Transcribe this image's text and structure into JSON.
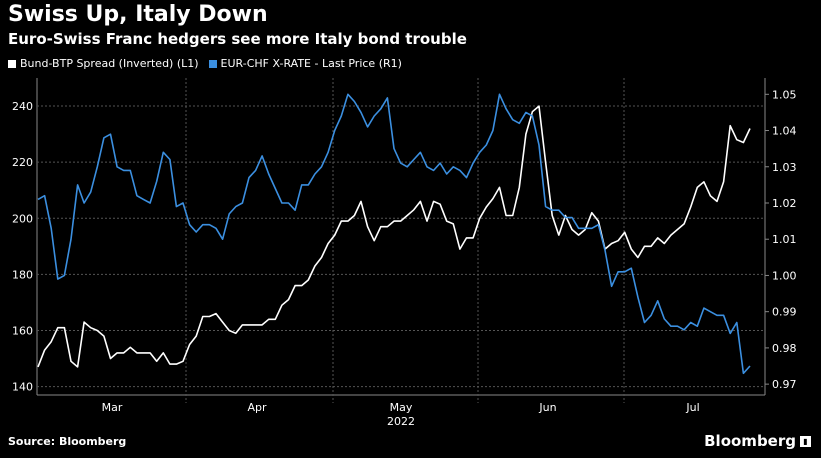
{
  "title": "Swiss Up, Italy Down",
  "subtitle": "Euro-Swiss Franc hedgers see more Italy bond trouble",
  "source": "Source: Bloomberg",
  "brand": "Bloomberg",
  "chart_data": {
    "type": "line",
    "x_labels": [
      "Mar",
      "Apr",
      "May",
      "Jun",
      "Jul"
    ],
    "x_year": "2022",
    "left_axis": {
      "ticks": [
        140,
        160,
        180,
        200,
        220,
        240
      ],
      "range": [
        137,
        250
      ],
      "inverted_note": "Bund-BTP Spread (Inverted)"
    },
    "right_axis": {
      "ticks": [
        "0.97",
        "0.98",
        "0.99",
        "1.00",
        "1.01",
        "1.02",
        "1.03",
        "1.04",
        "1.05"
      ],
      "range": [
        0.967,
        1.0545
      ]
    },
    "legend_position": "top-left",
    "grid": true,
    "series": [
      {
        "name": "Bund-BTP Spread (Inverted) (L1)",
        "axis": "left",
        "color": "#ffffff",
        "values": [
          147,
          153,
          156,
          161,
          161,
          149,
          147,
          163,
          161,
          160,
          158,
          150,
          152,
          152,
          154,
          152,
          152,
          152,
          149,
          152,
          148,
          148,
          149,
          155,
          158,
          165,
          165,
          166,
          163,
          160,
          159,
          162,
          162,
          162,
          162,
          164,
          164,
          169,
          171,
          176,
          176,
          178,
          183,
          186,
          191,
          194,
          199,
          199,
          201,
          206,
          197,
          192,
          197,
          197,
          199,
          199,
          201,
          203,
          206,
          199,
          206,
          205,
          199,
          198,
          189,
          193,
          193,
          200,
          204,
          207,
          211,
          201,
          201,
          211,
          230,
          238,
          240,
          220,
          201,
          194,
          201,
          196,
          194,
          196,
          202,
          199,
          189,
          191,
          192,
          195,
          189,
          186,
          190,
          190,
          193,
          191,
          194,
          196,
          198,
          204,
          211,
          213,
          208,
          206,
          213,
          233,
          228,
          227,
          232
        ]
      },
      {
        "name": "EUR-CHF X-RATE - Last Price (R1)",
        "axis": "right",
        "color": "#3b8fe0",
        "values": [
          1.021,
          1.022,
          1.013,
          0.999,
          1.0,
          1.01,
          1.025,
          1.02,
          1.023,
          1.03,
          1.038,
          1.039,
          1.03,
          1.029,
          1.029,
          1.022,
          1.021,
          1.02,
          1.026,
          1.034,
          1.032,
          1.019,
          1.02,
          1.014,
          1.012,
          1.014,
          1.014,
          1.013,
          1.01,
          1.017,
          1.019,
          1.02,
          1.027,
          1.029,
          1.033,
          1.028,
          1.024,
          1.02,
          1.02,
          1.018,
          1.025,
          1.025,
          1.028,
          1.03,
          1.034,
          1.04,
          1.044,
          1.05,
          1.048,
          1.045,
          1.041,
          1.044,
          1.046,
          1.049,
          1.035,
          1.031,
          1.03,
          1.032,
          1.034,
          1.03,
          1.029,
          1.031,
          1.028,
          1.03,
          1.029,
          1.027,
          1.031,
          1.034,
          1.036,
          1.04,
          1.05,
          1.046,
          1.043,
          1.042,
          1.045,
          1.044,
          1.036,
          1.019,
          1.018,
          1.018,
          1.016,
          1.016,
          1.013,
          1.013,
          1.013,
          1.014,
          1.007,
          0.997,
          1.001,
          1.001,
          1.002,
          0.994,
          0.987,
          0.989,
          0.993,
          0.988,
          0.986,
          0.986,
          0.985,
          0.987,
          0.986,
          0.991,
          0.99,
          0.989,
          0.989,
          0.984,
          0.987,
          0.973,
          0.975
        ]
      }
    ]
  }
}
